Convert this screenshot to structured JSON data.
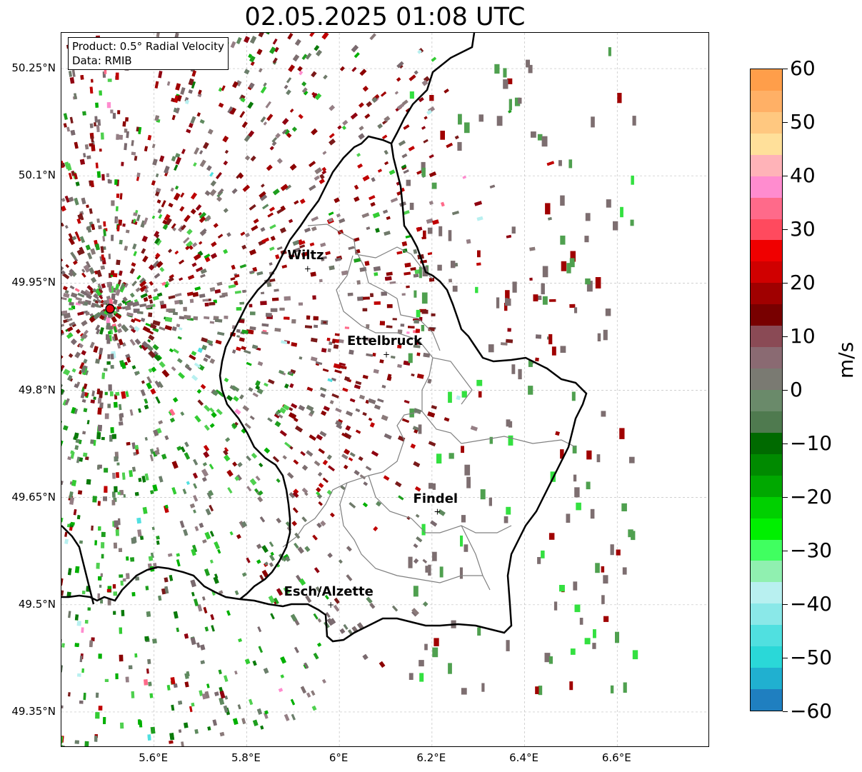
{
  "title": "02.05.2025 01:08 UTC",
  "info": {
    "product": "Product: 0.5° Radial Velocity",
    "source": "Data: RMIB"
  },
  "map": {
    "lon_range": [
      5.4,
      6.8
    ],
    "lat_range": [
      49.3,
      50.3
    ],
    "lat_ticks": [
      "50.25°N",
      "50.1°N",
      "49.95°N",
      "49.8°N",
      "49.65°N",
      "49.5°N",
      "49.35°N"
    ],
    "lon_ticks": [
      "5.6°E",
      "5.8°E",
      "6°E",
      "6.2°E",
      "6.4°E",
      "6.6°E"
    ],
    "radar_site": {
      "lon": 5.505,
      "lat": 49.914,
      "color": "#e8000b"
    },
    "cities": [
      {
        "name": "Wiltz",
        "lon": 5.93,
        "lat": 49.97
      },
      {
        "name": "Ettelbruck",
        "lon": 6.1,
        "lat": 49.85
      },
      {
        "name": "Findel",
        "lon": 6.21,
        "lat": 49.63
      },
      {
        "name": "Esch/Alzette",
        "lon": 5.98,
        "lat": 49.5
      }
    ]
  },
  "colorbar": {
    "unit": "m/s",
    "min": -60,
    "max": 60,
    "tick_labels": [
      "60",
      "50",
      "40",
      "30",
      "20",
      "10",
      "0",
      "−10",
      "−20",
      "−30",
      "−40",
      "−50",
      "−60"
    ],
    "colors_top_to_bottom": [
      "#ff9e4a",
      "#ffb066",
      "#ffc880",
      "#ffe09a",
      "#ffb3b8",
      "#ff8ccf",
      "#ff6a8a",
      "#ff4a5e",
      "#f00000",
      "#d00000",
      "#a00000",
      "#780000",
      "#8a4a55",
      "#8a6a72",
      "#7a7a72",
      "#6a8a6a",
      "#4f7a4f",
      "#006a00",
      "#008a00",
      "#00a800",
      "#00d000",
      "#00f000",
      "#40ff60",
      "#90f0b0",
      "#b8f0f0",
      "#8ae8e8",
      "#50e0e0",
      "#2ad8d8",
      "#20b0d0",
      "#1f7fc0"
    ]
  }
}
